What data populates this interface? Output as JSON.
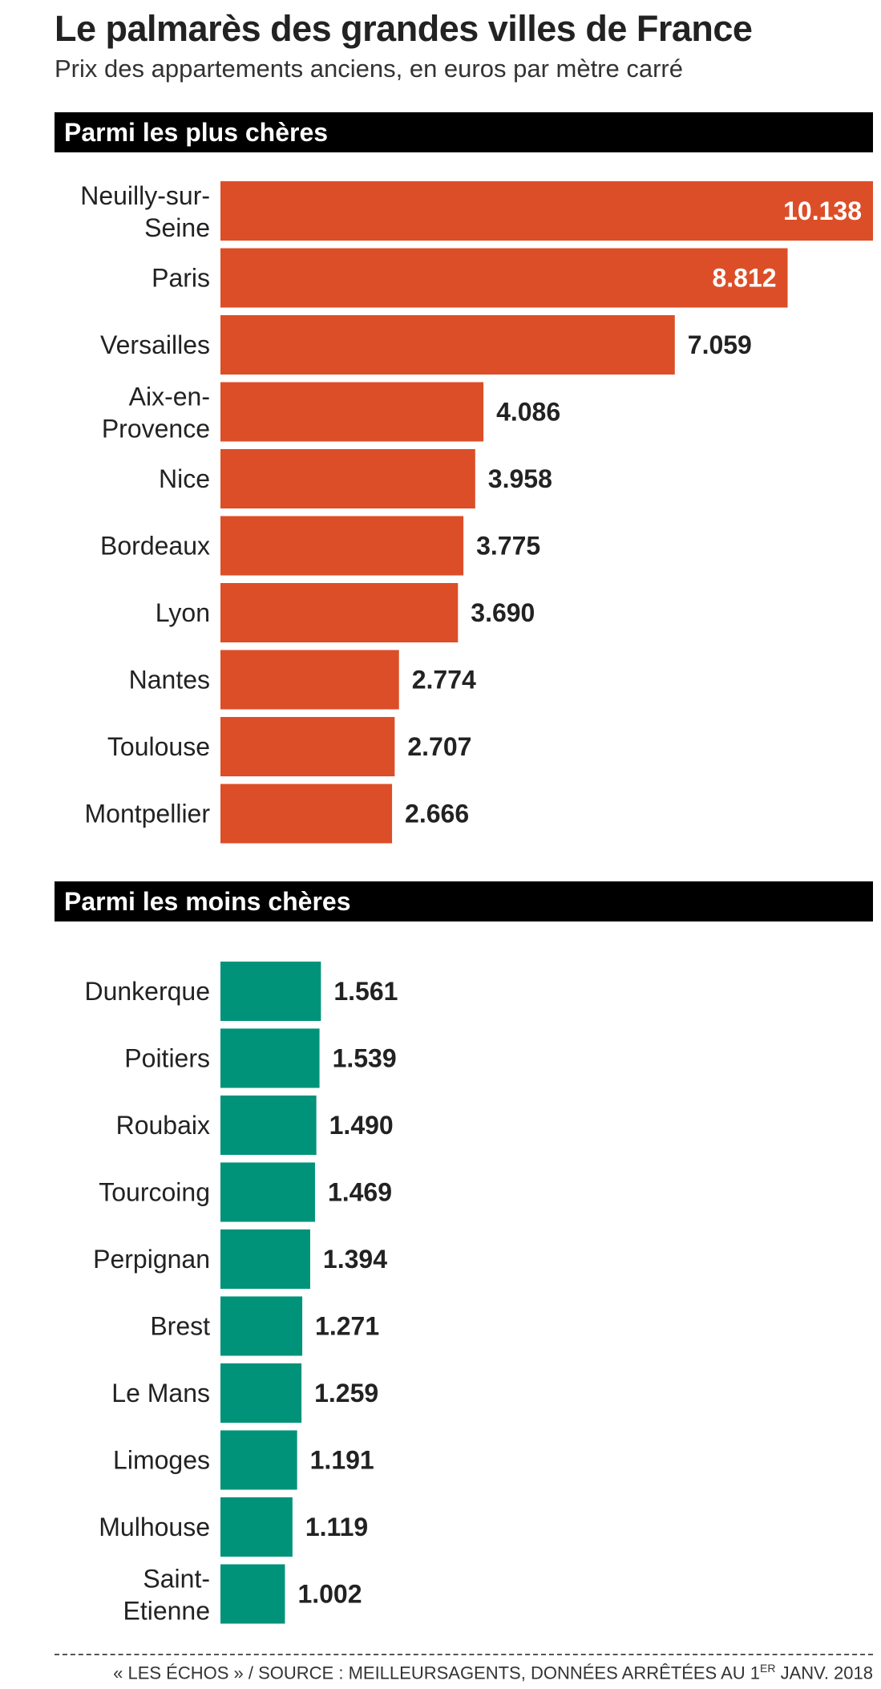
{
  "title": "Le palmarès des grandes villes de France",
  "subtitle": "Prix des appartements anciens, en euros par mètre carré",
  "footer": {
    "prefix": "« LES ÉCHOS » / SOURCE : MEILLEURSAGENTS, DONNÉES ARRÊTÉES AU 1",
    "superscript": "ER",
    "suffix": " JANV. 2018"
  },
  "colors": {
    "expensive": "#dc4e28",
    "cheap": "#00937a",
    "band": "#000000"
  },
  "chart_data": [
    {
      "type": "bar",
      "orientation": "horizontal",
      "title": "Parmi les plus chères",
      "unit": "euros par mètre carré",
      "color": "#dc4e28",
      "categories": [
        [
          "Neuilly-sur-",
          "Seine"
        ],
        [
          "Paris"
        ],
        [
          "Versailles"
        ],
        [
          "Aix-en-",
          "Provence"
        ],
        [
          "Nice"
        ],
        [
          "Bordeaux"
        ],
        [
          "Lyon"
        ],
        [
          "Nantes"
        ],
        [
          "Toulouse"
        ],
        [
          "Montpellier"
        ]
      ],
      "values": [
        10138,
        8812,
        7059,
        4086,
        3958,
        3775,
        3690,
        2774,
        2707,
        2666
      ],
      "value_labels": [
        "10.138",
        "8.812",
        "7.059",
        "4.086",
        "3.958",
        "3.775",
        "3.690",
        "2.774",
        "2.707",
        "2.666"
      ],
      "xlim": [
        0,
        10138
      ],
      "grid": false
    },
    {
      "type": "bar",
      "orientation": "horizontal",
      "title": "Parmi les moins chères",
      "unit": "euros par mètre carré",
      "color": "#00937a",
      "categories": [
        [
          "Dunkerque"
        ],
        [
          "Poitiers"
        ],
        [
          "Roubaix"
        ],
        [
          "Tourcoing"
        ],
        [
          "Perpignan"
        ],
        [
          "Brest"
        ],
        [
          "Le Mans"
        ],
        [
          "Limoges"
        ],
        [
          "Mulhouse"
        ],
        [
          "Saint-",
          "Etienne"
        ]
      ],
      "values": [
        1561,
        1539,
        1490,
        1469,
        1394,
        1271,
        1259,
        1191,
        1119,
        1002
      ],
      "value_labels": [
        "1.561",
        "1.539",
        "1.490",
        "1.469",
        "1.394",
        "1.271",
        "1.259",
        "1.191",
        "1.119",
        "1.002"
      ],
      "xlim": [
        0,
        10138
      ],
      "grid": false
    }
  ]
}
